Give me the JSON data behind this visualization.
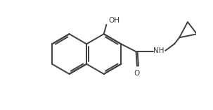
{
  "bg_color": "#ffffff",
  "line_color": "#404040",
  "text_color": "#404040",
  "figsize": [
    3.03,
    1.56
  ],
  "dpi": 100,
  "lw": 1.4,
  "font_size": 7.5,
  "xlim": [
    -0.5,
    8.5
  ],
  "ylim": [
    -0.3,
    5.2
  ]
}
